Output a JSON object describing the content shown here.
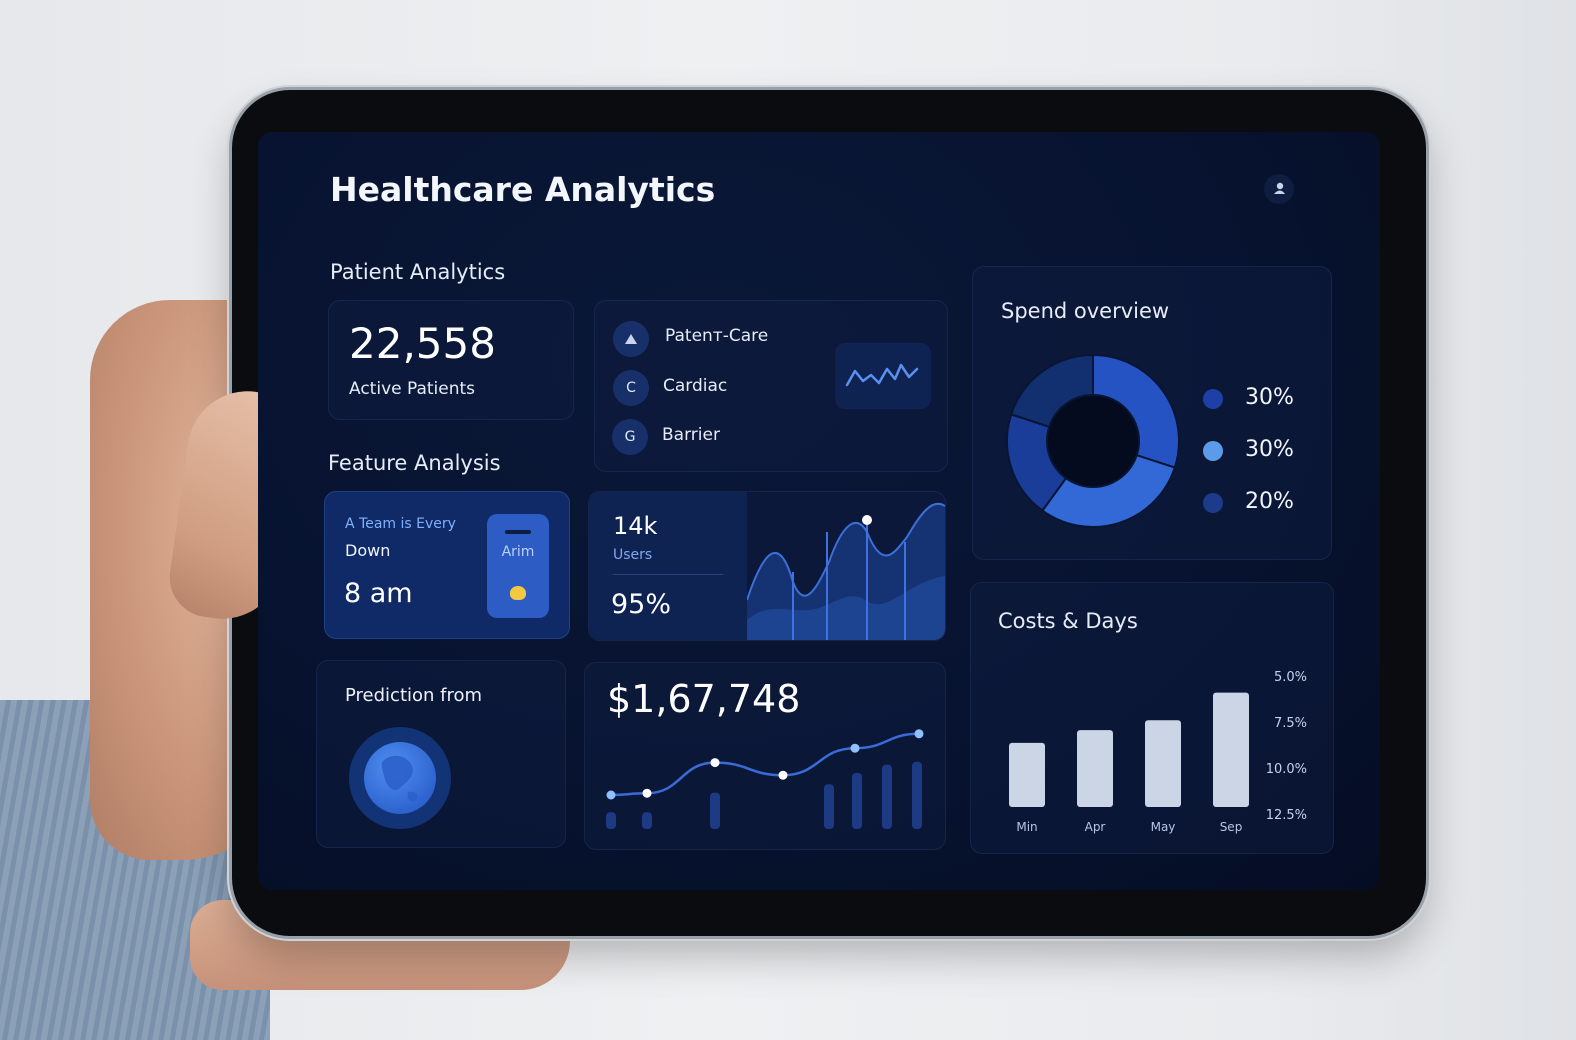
{
  "header": {
    "title": "Healthcare Analytics",
    "profile_icon": "user-icon"
  },
  "patient_analytics": {
    "heading": "Patient Analytics",
    "active_count": "22,558",
    "active_label": "Active Patients",
    "list": [
      {
        "icon": "triangle-icon",
        "label": "Patenт-Care"
      },
      {
        "icon_text": "C",
        "label": "Cardiac"
      },
      {
        "icon_text": "G",
        "label": "Barrier"
      }
    ]
  },
  "feature_analysis": {
    "heading": "Feature Analysis",
    "team_card": {
      "line1": "A Team is Every",
      "line2": "Down",
      "time": "8 am",
      "badge": "Arim"
    },
    "users_card": {
      "value": "14k",
      "label": "Users",
      "percent": "95%"
    }
  },
  "prediction": {
    "label": "Prediction from",
    "icon": "globe-icon"
  },
  "revenue": {
    "value": "$1,67,748"
  },
  "spend_overview": {
    "heading": "Spend overview",
    "legend": [
      {
        "label": "30%",
        "color": "#1d3fa6"
      },
      {
        "label": "30%",
        "color": "#5b9bea"
      },
      {
        "label": "20%",
        "color": "#1e3a8a"
      }
    ]
  },
  "costs_days": {
    "heading": "Costs & Days",
    "y_ticks": [
      "5.0%",
      "7.5%",
      "10.0%",
      "12.5%"
    ]
  },
  "chart_data": [
    {
      "type": "pie",
      "slices": [
        {
          "label": "30%",
          "value": 30,
          "color": "#2553c4"
        },
        {
          "label": "30%",
          "value": 30,
          "color": "#3269d6"
        },
        {
          "label": "20%",
          "value": 20,
          "color": "#1a3d9a"
        }
      ],
      "other_value": 20,
      "other_color": "#123070"
    },
    {
      "type": "bar",
      "categories": [
        "Min",
        "Apr",
        "May",
        "Sep"
      ],
      "values": [
        6.5,
        7.8,
        8.8,
        11.6
      ],
      "ylim": [
        0,
        14
      ]
    },
    {
      "type": "line",
      "line": [
        2.0,
        2.1,
        3.8,
        3.1,
        4.6,
        5.4
      ],
      "bars": [
        1.2,
        1.2,
        2.6,
        3.2,
        4.0,
        4.6,
        4.8,
        5.0
      ]
    }
  ]
}
